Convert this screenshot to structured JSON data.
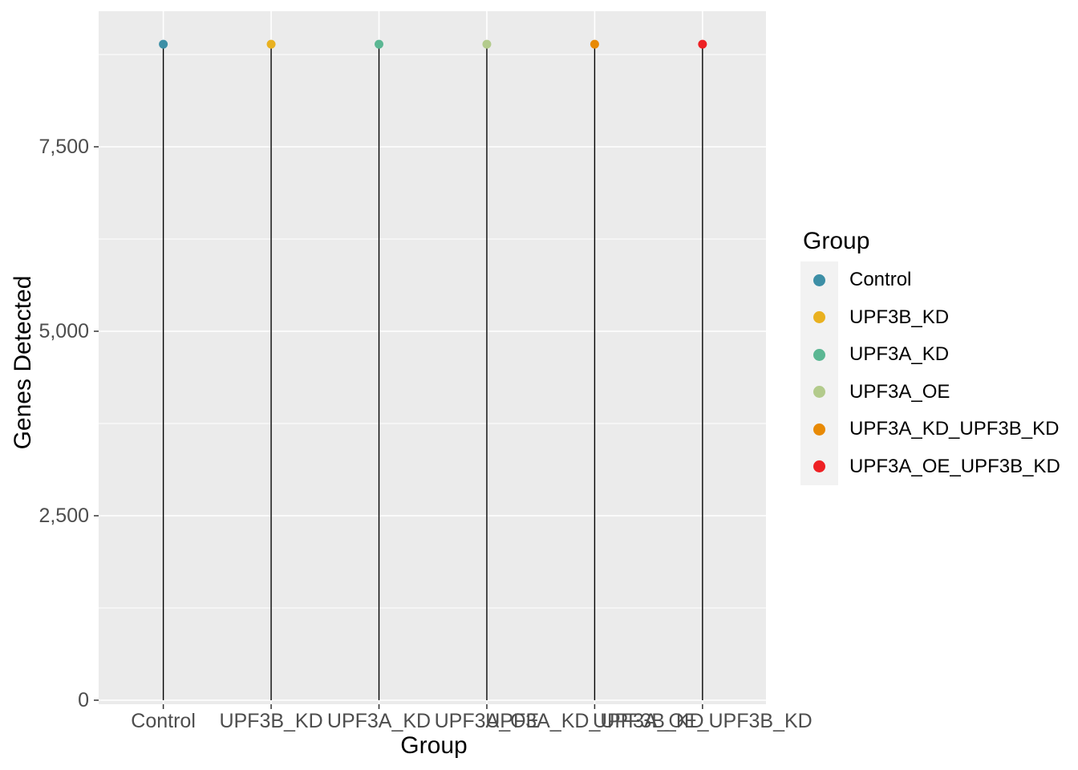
{
  "chart_data": {
    "type": "lollipop",
    "title": "",
    "xlabel": "Group",
    "ylabel": "Genes Detected",
    "categories": [
      "Control",
      "UPF3B_KD",
      "UPF3A_KD",
      "UPF3A_OE",
      "UPF3A_KD_UPF3B_KD",
      "UPF3A_OE_UPF3B_KD"
    ],
    "values": [
      8890,
      8890,
      8890,
      8890,
      8890,
      8890
    ],
    "colors": [
      "#3D8FA6",
      "#E9B120",
      "#5BB793",
      "#B3CB8C",
      "#E88A05",
      "#EE2124"
    ],
    "ylim": [
      0,
      9340
    ],
    "yticks": [
      0,
      2500,
      5000,
      7500
    ],
    "ytick_labels": [
      "0",
      "2,500",
      "5,000",
      "7,500"
    ],
    "yminor": [
      1250,
      3750,
      6250,
      8750
    ],
    "grid": "white major and minor gridlines on gray panel",
    "legend": {
      "title": "Group",
      "position": "right",
      "entries": [
        "Control",
        "UPF3B_KD",
        "UPF3A_KD",
        "UPF3A_OE",
        "UPF3A_KD_UPF3B_KD",
        "UPF3A_OE_UPF3B_KD"
      ]
    },
    "style": {
      "panel_bg": "#EBEBEB",
      "grid_color": "#FFFFFF",
      "stem_color": "#000000",
      "tick_mark_color": "#333333",
      "tick_label_color": "#4D4D4D",
      "axis_title_color": "#000000",
      "legend_key_bg": "#F2F2F2"
    }
  }
}
